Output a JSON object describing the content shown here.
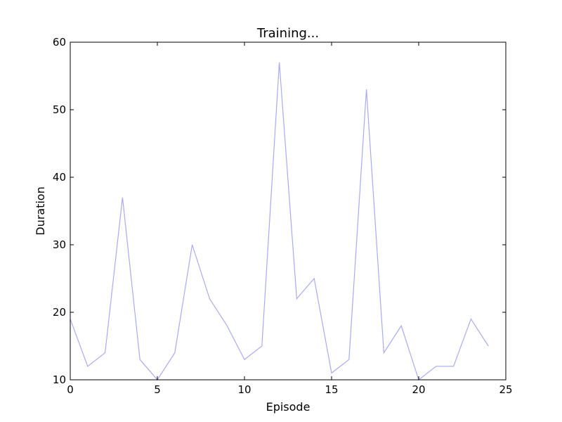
{
  "chart_data": {
    "type": "line",
    "title": "Training...",
    "xlabel": "Episode",
    "ylabel": "Duration",
    "xlim": [
      0,
      25
    ],
    "ylim": [
      10,
      60
    ],
    "xticks": [
      0,
      5,
      10,
      15,
      20,
      25
    ],
    "yticks": [
      10,
      20,
      30,
      40,
      50,
      60
    ],
    "grid": false,
    "series": [
      {
        "color": "#aaaaf0",
        "x": [
          0,
          1,
          2,
          3,
          4,
          5,
          6,
          7,
          8,
          9,
          10,
          11,
          12,
          13,
          14,
          15,
          16,
          17,
          18,
          19,
          20,
          21,
          22,
          23,
          24
        ],
        "values": [
          19,
          12,
          14,
          37,
          13,
          10,
          14,
          30,
          22,
          18,
          13,
          15,
          57,
          22,
          25,
          11,
          13,
          53,
          14,
          18,
          10,
          12,
          12,
          19,
          15
        ]
      }
    ]
  }
}
